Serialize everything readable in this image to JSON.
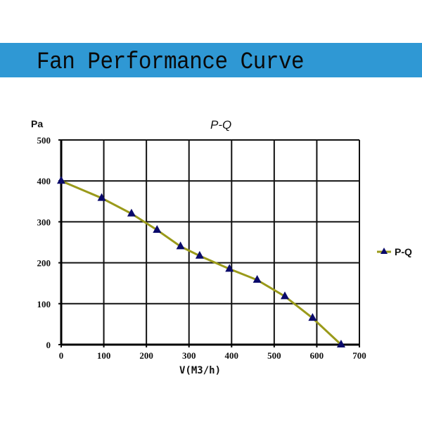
{
  "banner": {
    "title": "Fan Performance Curve",
    "color": "#2f98d4"
  },
  "chart_data": {
    "type": "line",
    "title": "P-Q",
    "xlabel": "V(M3/h)",
    "ylabel": "Pa",
    "xlim": [
      0,
      700
    ],
    "ylim": [
      0,
      500
    ],
    "xticks": [
      0,
      100,
      200,
      300,
      400,
      500,
      600,
      700
    ],
    "yticks": [
      0,
      100,
      200,
      300,
      400,
      500
    ],
    "grid": true,
    "legend_position": "right",
    "series": [
      {
        "name": "P-Q",
        "line_color": "#9a9a1a",
        "marker": "triangle",
        "marker_color": "#0a0a6a",
        "x": [
          0,
          95,
          165,
          225,
          280,
          325,
          395,
          460,
          525,
          590,
          657
        ],
        "y": [
          400,
          358,
          320,
          280,
          240,
          217,
          185,
          158,
          118,
          65,
          0
        ]
      }
    ]
  }
}
